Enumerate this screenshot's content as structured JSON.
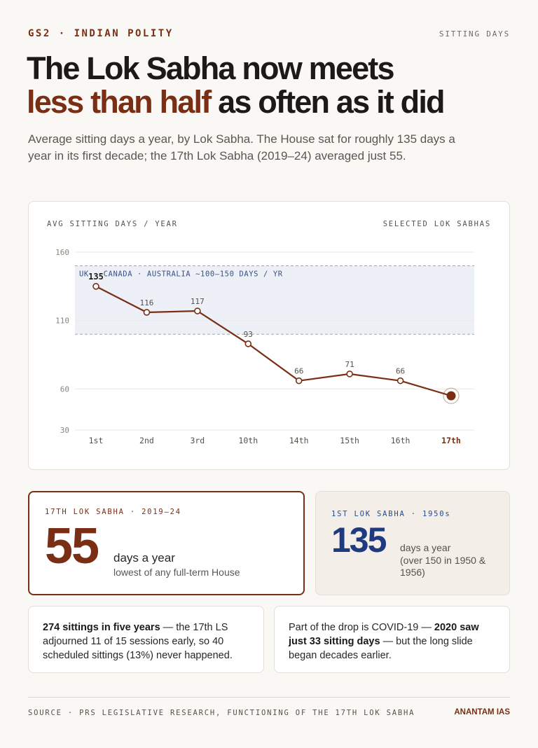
{
  "header": {
    "kicker": "GS2 · INDIAN POLITY",
    "kicker_right": "SITTING DAYS"
  },
  "headline": {
    "accent": "less than half",
    "line1": "The Lok Sabha now meets",
    "line2_rest": " as often as it did"
  },
  "subhead": "Average sitting days a year, by Lok Sabha. The House sat for roughly 135 days a year in its first decade; the 17th Lok Sabha (2019–24) averaged just 55.",
  "chart_labels": {
    "left": "AVG SITTING DAYS / YEAR",
    "right": "SELECTED LOK SABHAS"
  },
  "chart_data": {
    "type": "line",
    "categories": [
      "1st",
      "2nd",
      "3rd",
      "10th",
      "14th",
      "15th",
      "16th",
      "17th"
    ],
    "values": [
      135,
      116,
      117,
      93,
      66,
      71,
      66,
      55
    ],
    "data_labels": [
      "135",
      "116",
      "117",
      "93",
      "66",
      "71",
      "66",
      ""
    ],
    "highlight_index": 7,
    "yticks": [
      30,
      60,
      110,
      160
    ],
    "ylim": [
      30,
      160
    ],
    "grid": true,
    "band": {
      "label": "UK · CANADA · AUSTRALIA ~100–150 DAYS / YR",
      "from": 100,
      "to": 150
    },
    "colors": {
      "line": "#7a2e14",
      "band": "#eef0f7",
      "band_border": "#9aa3b8",
      "band_text": "#3a4f86",
      "grid": "#ebe7e0",
      "tick": "#8a857d"
    }
  },
  "stats": {
    "main": {
      "label": "17TH LOK SABHA · 2019–24",
      "value": "55",
      "unit": "days a year",
      "note": "lowest of any full-term House"
    },
    "alt": {
      "label": "1ST LOK SABHA · 1950s",
      "value": "135",
      "unit": "days a year",
      "note": "(over 150 in 1950 & 1956)"
    }
  },
  "facts": {
    "one_bold": "274 sittings in five years",
    "one_rest": " — the 17th LS adjourned 11 of 15 sessions early, so 40 scheduled sittings (13%) never happened.",
    "two_start": "Part of the drop is COVID-19 — ",
    "two_bold": "2020 saw just 33 sitting days",
    "two_end": " — but the long slide began decades earlier."
  },
  "footer": {
    "source": "SOURCE · PRS LEGISLATIVE RESEARCH, FUNCTIONING OF THE 17TH LOK SABHA",
    "brand": "ANANTAM IAS"
  }
}
